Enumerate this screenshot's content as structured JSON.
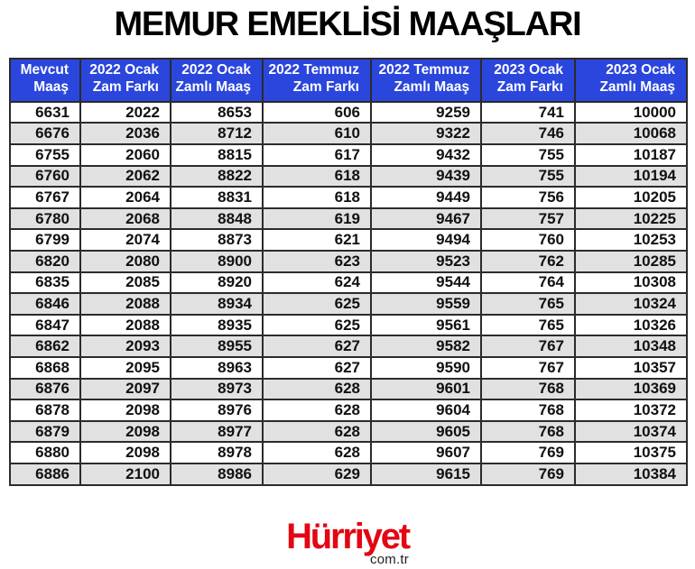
{
  "page": {
    "title": "MEMUR EMEKLİSİ MAAŞLARI"
  },
  "footer": {
    "brand": "Hürriyet",
    "domain": "com.tr"
  },
  "colors": {
    "header-bg": "#2B46DC",
    "header-text": "#FFFFFF",
    "row-alt": "#E1E1E1",
    "border": "#2B2B2B",
    "brand-red": "#E30613",
    "text": "#111111"
  },
  "chart_data": {
    "type": "table",
    "title": "MEMUR EMEKLİSİ MAAŞLARI",
    "columns": [
      "Mevcut Maaş",
      "2022 Ocak Zam Farkı",
      "2022 Ocak Zamlı Maaş",
      "2022 Temmuz Zam Farkı",
      "2022 Temmuz Zamlı Maaş",
      "2023 Ocak Zam Farkı",
      "2023 Ocak Zamlı Maaş"
    ],
    "column_lines": [
      [
        "Mevcut",
        "Maaş"
      ],
      [
        "2022 Ocak",
        "Zam Farkı"
      ],
      [
        "2022 Ocak",
        "Zamlı Maaş"
      ],
      [
        "2022 Temmuz",
        "Zam Farkı"
      ],
      [
        "2022 Temmuz",
        "Zamlı Maaş"
      ],
      [
        "2023 Ocak",
        "Zam Farkı"
      ],
      [
        "2023 Ocak",
        "Zamlı Maaş"
      ]
    ],
    "rows": [
      [
        6631,
        2022,
        8653,
        606,
        9259,
        741,
        10000
      ],
      [
        6676,
        2036,
        8712,
        610,
        9322,
        746,
        10068
      ],
      [
        6755,
        2060,
        8815,
        617,
        9432,
        755,
        10187
      ],
      [
        6760,
        2062,
        8822,
        618,
        9439,
        755,
        10194
      ],
      [
        6767,
        2064,
        8831,
        618,
        9449,
        756,
        10205
      ],
      [
        6780,
        2068,
        8848,
        619,
        9467,
        757,
        10225
      ],
      [
        6799,
        2074,
        8873,
        621,
        9494,
        760,
        10253
      ],
      [
        6820,
        2080,
        8900,
        623,
        9523,
        762,
        10285
      ],
      [
        6835,
        2085,
        8920,
        624,
        9544,
        764,
        10308
      ],
      [
        6846,
        2088,
        8934,
        625,
        9559,
        765,
        10324
      ],
      [
        6847,
        2088,
        8935,
        625,
        9561,
        765,
        10326
      ],
      [
        6862,
        2093,
        8955,
        627,
        9582,
        767,
        10348
      ],
      [
        6868,
        2095,
        8963,
        627,
        9590,
        767,
        10357
      ],
      [
        6876,
        2097,
        8973,
        628,
        9601,
        768,
        10369
      ],
      [
        6878,
        2098,
        8976,
        628,
        9604,
        768,
        10372
      ],
      [
        6879,
        2098,
        8977,
        628,
        9605,
        768,
        10374
      ],
      [
        6880,
        2098,
        8978,
        628,
        9607,
        769,
        10375
      ],
      [
        6886,
        2100,
        8986,
        629,
        9615,
        769,
        10384
      ]
    ]
  }
}
